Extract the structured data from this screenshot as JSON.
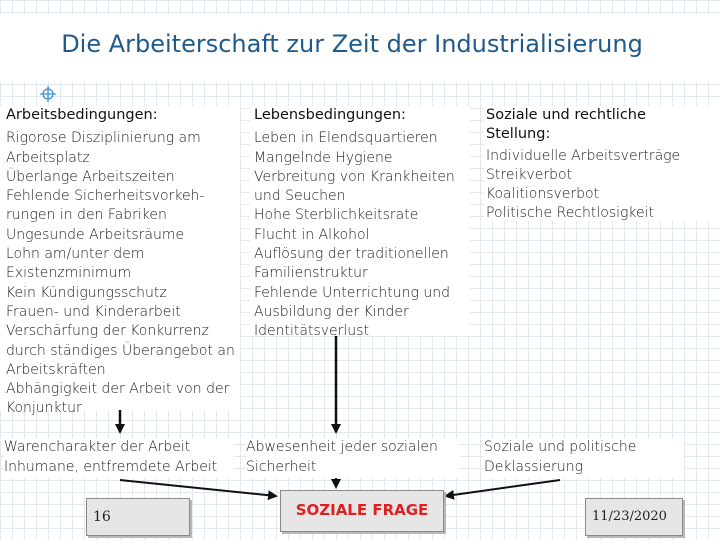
{
  "slide": {
    "title": "Die Arbeiterschaft zur Zeit der Industrialisierung"
  },
  "columns": [
    {
      "heading": "Arbeitsbedingungen:",
      "items": [
        "Rigorose Disziplinierung am",
        "Arbeitsplatz",
        "Überlange Arbeitszeiten",
        "Fehlende Sicherheitsvorkeh-",
        "rungen in den Fabriken",
        "Ungesunde Arbeitsräume",
        "Lohn am/unter dem",
        "Existenzminimum",
        "Kein Kündigungsschutz",
        "Frauen- und Kinderarbeit",
        "Verschärfung der Konkurrenz",
        "durch ständiges Überangebot an",
        "Arbeitskräften",
        "Abhängigkeit der Arbeit von der",
        "Konjunktur"
      ]
    },
    {
      "heading": "Lebensbedingungen:",
      "items": [
        "Leben in Elendsquartieren",
        "Mangelnde Hygiene",
        "Verbreitung von Krankheiten",
        "und Seuchen",
        "Hohe Sterblichkeitsrate",
        "Flucht in Alkohol",
        "Auflösung der traditionellen",
        "Familienstruktur",
        "Fehlende Unterrichtung und",
        "Ausbildung der Kinder",
        "Identitätsverlust"
      ]
    },
    {
      "heading_line1": "Soziale und rechtliche",
      "heading_line2": "Stellung:",
      "items": [
        "Individuelle Arbeitsverträge",
        "Streikverbot",
        "Koalitionsverbot",
        "Politische Rechtlosigkeit"
      ]
    }
  ],
  "results": [
    [
      "Warencharakter der Arbeit",
      "Inhumane, entfremdete Arbeit"
    ],
    [
      "Abwesenheit jeder sozialen",
      "Sicherheit"
    ],
    [
      "Soziale und politische",
      "Deklassierung"
    ]
  ],
  "footer": {
    "page_number": "16",
    "center_label": "SOZIALE FRAGE",
    "date": "11/23/2020"
  },
  "colors": {
    "title": "#1f5a8c",
    "center_label": "#e02020",
    "grid": "#e2e8ef"
  }
}
